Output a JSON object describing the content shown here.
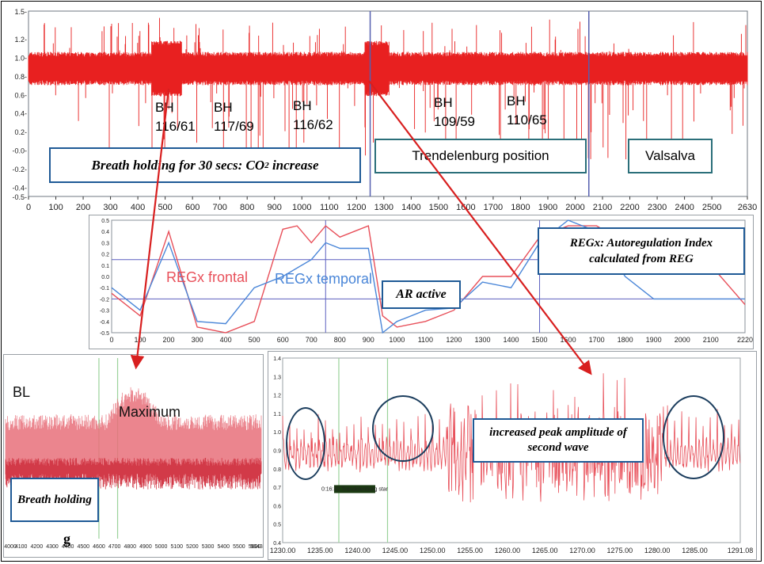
{
  "figure": {
    "top_chart": {
      "type": "line",
      "signal_color": "#e82020",
      "y_ticks": [
        "1.5-",
        "1.2-",
        "1.0-",
        "0.8-",
        "0.6-",
        "0.4-",
        "0.2-",
        "-0.0-",
        "-0.2-",
        "-0.4-",
        "-0.5-"
      ],
      "x_ticks": [
        "0",
        "100",
        "200",
        "300",
        "400",
        "500",
        "600",
        "700",
        "800",
        "900",
        "1000",
        "1100",
        "1200",
        "1300",
        "1400",
        "1500",
        "1600",
        "1700",
        "1800",
        "1900",
        "2000",
        "2100",
        "2200",
        "2300",
        "2400",
        "2500",
        "2630"
      ],
      "bp_labels": [
        {
          "bh": "BH",
          "bp": "116/61"
        },
        {
          "bh": "BH",
          "bp": "117/69"
        },
        {
          "bh": "BH",
          "bp": "116/62"
        },
        {
          "bh": "BH",
          "bp": "109/59"
        },
        {
          "bh": "BH",
          "bp": "110/65"
        }
      ],
      "box_breath": {
        "text": "Breath holding for 30 secs: CO",
        "sub": "2",
        "tail": " increase"
      },
      "box_trend": "Trendelenburg position",
      "box_valsalva": "Valsalva"
    },
    "middle_chart": {
      "y_ticks": [
        "0.5",
        "0.4",
        "0.3",
        "0.2",
        "0.1",
        "0.0",
        "-0.1",
        "-0.2",
        "-0.3",
        "-0.4",
        "-0.5"
      ],
      "x_ticks": [
        "0",
        "100",
        "200",
        "300",
        "400",
        "500",
        "600",
        "700",
        "800",
        "900",
        "1000",
        "1100",
        "1200",
        "1300",
        "1400",
        "1500",
        "1600",
        "1700",
        "1800",
        "1900",
        "2000",
        "2100",
        "2200"
      ],
      "x_end_label": "2220",
      "frontal_label": "REGx frontal",
      "temporal_label": "REGx temporal",
      "frontal_color": "#e8505a",
      "temporal_color": "#4a86d8",
      "box_ar": "AR active",
      "box_regx": "REGx: Autoregulation Index calculated from REG"
    },
    "bottom_left_chart": {
      "bl_label": "BL",
      "max_label": "Maximum",
      "box_breath": "Breath holding",
      "stray_label": "g",
      "x_ticks": [
        "4100",
        "4200",
        "4300",
        "4400",
        "4500",
        "4600",
        "4700",
        "4800",
        "4900",
        "5000",
        "5100",
        "5200",
        "5300",
        "5400",
        "5500",
        "5600"
      ],
      "x_first_label": "4000",
      "x_last_label": "5643"
    },
    "bottom_right_chart": {
      "y_ticks": [
        "1.4",
        "1.3",
        "1.2",
        "1.1",
        "1.0",
        "0.9",
        "0.8",
        "0.7",
        "0.6",
        "0.5",
        "0.4"
      ],
      "x_ticks": [
        "1230.00",
        "1235.00",
        "1240.00",
        "1245.00",
        "1250.00",
        "1255.00",
        "1260.00",
        "1265.00",
        "1270.00",
        "1275.00",
        "1280.00",
        "1285.00",
        "1291.08"
      ],
      "marker_label": "0:16:42 Trendelenburg star",
      "box_peak": "increased peak amplitude of second wave"
    }
  },
  "chart_data": [
    {
      "type": "line",
      "title": "",
      "xlabel": "",
      "ylabel": "",
      "xlim": [
        0,
        2630
      ],
      "ylim": [
        -0.5,
        1.5
      ],
      "series": [
        {
          "baseline": 0.88,
          "envelope": [
            0.75,
            1.05
          ]
        }
      ],
      "annotations": [
        {
          "x": 600,
          "text": "BH 116/61"
        },
        {
          "x": 800,
          "text": "BH 117/69"
        },
        {
          "x": 1000,
          "text": "BH 116/62"
        },
        {
          "x": 1580,
          "text": "BH 109/59"
        },
        {
          "x": 1790,
          "text": "BH 110/65"
        }
      ],
      "markers_x": [
        1250,
        2050
      ]
    },
    {
      "type": "line",
      "xlim": [
        0,
        2220
      ],
      "ylim": [
        -0.5,
        0.5
      ],
      "series": [
        {
          "name": "REGx frontal",
          "x": [
            0,
            100,
            200,
            300,
            400,
            500,
            600,
            650,
            700,
            750,
            800,
            850,
            900,
            950,
            1000,
            1100,
            1200,
            1300,
            1400,
            1500,
            1600,
            1700,
            1800,
            1900,
            2000,
            2100,
            2220
          ],
          "values": [
            -0.15,
            -0.35,
            0.4,
            -0.45,
            -0.5,
            -0.4,
            0.42,
            0.45,
            0.3,
            0.45,
            0.35,
            0.4,
            0.45,
            -0.35,
            -0.45,
            -0.4,
            -0.3,
            0.0,
            0.0,
            0.35,
            0.45,
            0.45,
            0.3,
            0.2,
            0.15,
            0.1,
            -0.25
          ]
        },
        {
          "name": "REGx temporal",
          "x": [
            0,
            100,
            200,
            300,
            400,
            500,
            600,
            700,
            750,
            800,
            900,
            950,
            1000,
            1100,
            1200,
            1300,
            1400,
            1500,
            1600,
            1700,
            1800,
            1900,
            2000,
            2100,
            2220
          ],
          "values": [
            -0.1,
            -0.3,
            0.3,
            -0.4,
            -0.42,
            -0.1,
            0.0,
            0.15,
            0.3,
            0.25,
            0.25,
            -0.5,
            -0.4,
            -0.3,
            -0.28,
            -0.05,
            -0.1,
            0.3,
            0.5,
            0.4,
            0.0,
            -0.2,
            -0.2,
            -0.2,
            -0.2
          ]
        }
      ],
      "h_lines": [
        0.15,
        -0.2
      ],
      "v_lines": [
        750,
        1500
      ]
    },
    {
      "type": "line",
      "xlim": [
        4000,
        5643
      ],
      "series": [
        {
          "baseline": 0.5
        }
      ]
    },
    {
      "type": "line",
      "xlim": [
        1230,
        1291.08
      ],
      "ylim": [
        0.4,
        1.4
      ],
      "series": [
        {
          "baseline": 0.9
        }
      ],
      "v_lines": [
        1237.5,
        1244.0
      ]
    }
  ]
}
